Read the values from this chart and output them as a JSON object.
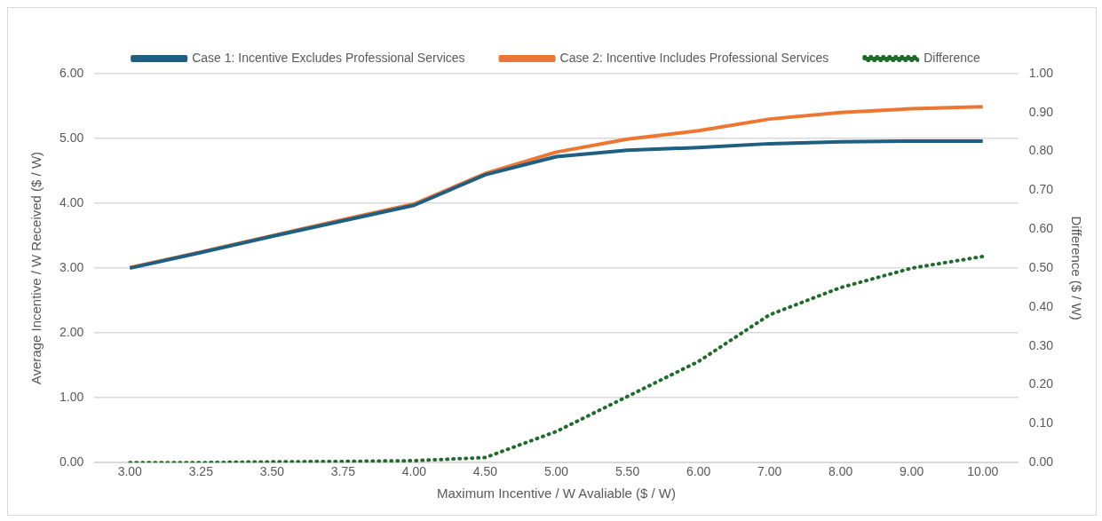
{
  "chart_data": {
    "type": "line",
    "xlabel": "Maximum Incentive / W Avaliable ($ / W)",
    "ylabel": "Average Incentive / W Received ($ / W)",
    "y2label": "Difference ($ / W)",
    "categories": [
      "3.00",
      "3.25",
      "3.50",
      "3.75",
      "4.00",
      "4.50",
      "5.00",
      "5.50",
      "6.00",
      "7.00",
      "8.00",
      "9.00",
      "10.00"
    ],
    "series": [
      {
        "name": "Case 1: Incentive Excludes Professional Services",
        "color": "#1f5f82",
        "values": [
          3.0,
          3.24,
          3.49,
          3.73,
          3.97,
          4.44,
          4.72,
          4.82,
          4.86,
          4.92,
          4.95,
          4.96,
          4.96
        ]
      },
      {
        "name": "Case 2: Incentive Includes Professional Services",
        "color": "#ed7633",
        "values": [
          3.01,
          3.25,
          3.5,
          3.75,
          3.99,
          4.46,
          4.79,
          4.99,
          5.12,
          5.3,
          5.4,
          5.46,
          5.49
        ]
      },
      {
        "name": "Difference",
        "color": "#1e6b2a",
        "axis": "y2",
        "line_style": "dotted",
        "values": [
          0.0,
          0.0,
          0.002,
          0.003,
          0.005,
          0.013,
          0.08,
          0.17,
          0.26,
          0.38,
          0.45,
          0.5,
          0.53
        ]
      }
    ],
    "ylim": [
      0,
      6
    ],
    "yticks": [
      {
        "value": 0,
        "label": "0.00"
      },
      {
        "value": 1,
        "label": "1.00"
      },
      {
        "value": 2,
        "label": "2.00"
      },
      {
        "value": 3,
        "label": "3.00"
      },
      {
        "value": 4,
        "label": "4.00"
      },
      {
        "value": 5,
        "label": "5.00"
      },
      {
        "value": 6,
        "label": "6.00"
      }
    ],
    "y2lim": [
      0,
      1
    ],
    "y2ticks": [
      {
        "value": 0,
        "label": "0.00"
      },
      {
        "value": 0.1,
        "label": "0.10"
      },
      {
        "value": 0.2,
        "label": "0.20"
      },
      {
        "value": 0.3,
        "label": "0.30"
      },
      {
        "value": 0.4,
        "label": "0.40"
      },
      {
        "value": 0.5,
        "label": "0.50"
      },
      {
        "value": 0.6,
        "label": "0.60"
      },
      {
        "value": 0.7,
        "label": "0.70"
      },
      {
        "value": 0.8,
        "label": "0.80"
      },
      {
        "value": 0.9,
        "label": "0.90"
      },
      {
        "value": 1,
        "label": "1.00"
      }
    ],
    "grid": "y",
    "legend": "top",
    "marker": "none",
    "line_style": "solid"
  }
}
